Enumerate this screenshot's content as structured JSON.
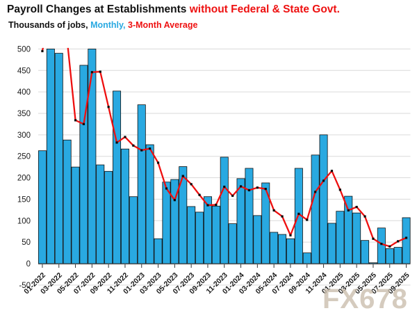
{
  "title": {
    "part1": "Payroll Changes at Establishments ",
    "part2": "without Federal & State Govt."
  },
  "subtitle": {
    "part1": "Thousands of jobs, ",
    "part2": "Monthly,",
    "part3": " 3-Month Average"
  },
  "watermark": "FX678",
  "colors": {
    "bar_fill": "#29a9e1",
    "bar_border": "#111111",
    "line": "#ee0f0f",
    "marker": "#0a0a0a",
    "gridline": "#dadada",
    "axis": "#595959",
    "tick_label": "#1a1a1a",
    "title_accent": "#ee1111",
    "subtitle_monthly": "#29a9e1",
    "subtitle_average": "#ee1111",
    "watermark": "#cbbfae"
  },
  "chart_data": {
    "type": "bar",
    "title": "Payroll Changes at Establishments without Federal & State Govt.",
    "subtitle": "Thousands of jobs, Monthly, 3-Month Average",
    "ylabel": "Thousands of jobs",
    "xlabel": "",
    "ylim": [
      -50,
      500
    ],
    "ytick_step": 50,
    "ytick_labels": [
      "-50",
      "0",
      "50",
      "100",
      "150",
      "200",
      "250",
      "300",
      "350",
      "400",
      "450",
      "500"
    ],
    "grid": "horizontal",
    "legend_position": "none (encoded in subtitle colors)",
    "categories": [
      "01-2022",
      "02-2022",
      "03-2022",
      "04-2022",
      "05-2022",
      "06-2022",
      "07-2022",
      "08-2022",
      "09-2022",
      "10-2022",
      "11-2022",
      "12-2022",
      "01-2023",
      "02-2023",
      "03-2023",
      "04-2023",
      "05-2023",
      "06-2023",
      "07-2023",
      "08-2023",
      "09-2023",
      "10-2023",
      "11-2023",
      "12-2023",
      "01-2024",
      "02-2024",
      "03-2024",
      "04-2024",
      "05-2024",
      "06-2024",
      "07-2024",
      "08-2024",
      "09-2024",
      "10-2024",
      "11-2024",
      "12-2024",
      "01-2025",
      "02-2025",
      "03-2025",
      "04-2025",
      "05-2025",
      "06-2025",
      "07-2025",
      "08-2025",
      "09-2025"
    ],
    "xtick_label_every": 2,
    "series": [
      {
        "name": "Monthly",
        "type": "bar",
        "values": [
          263,
          500,
          490,
          288,
          225,
          462,
          500,
          230,
          215,
          402,
          267,
          156,
          370,
          277,
          58,
          190,
          196,
          226,
          133,
          120,
          156,
          134,
          248,
          93,
          198,
          222,
          112,
          188,
          73,
          68,
          58,
          222,
          25,
          253,
          300,
          94,
          122,
          157,
          118,
          54,
          2,
          83,
          35,
          38,
          107
        ],
        "clipped_at_ymax": [
          "02-2022",
          "07-2022"
        ]
      },
      {
        "name": "3-Month Average",
        "type": "line",
        "values": [
          495,
          null,
          null,
          null,
          334,
          325,
          446,
          447,
          365,
          282,
          295,
          275,
          264,
          268,
          235,
          175,
          148,
          204,
          185,
          160,
          136,
          137,
          179,
          158,
          180,
          171,
          177,
          174,
          124,
          110,
          66,
          116,
          102,
          167,
          193,
          216,
          172,
          124,
          132,
          110,
          58,
          46,
          40,
          52,
          60
        ],
        "offscale_estimates": {
          "02-2022": 600,
          "03-2022": 600,
          "04-2022": 520
        }
      }
    ]
  }
}
